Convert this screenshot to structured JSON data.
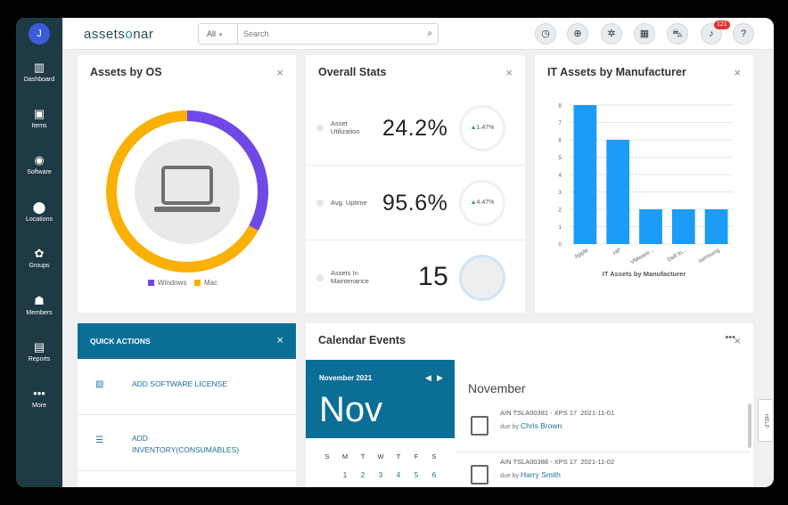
{
  "sidebar": {
    "avatar": "J",
    "items": [
      {
        "label": "Dashboard",
        "icon": "dashboard-icon",
        "glyph": "▥"
      },
      {
        "label": "Items",
        "icon": "gift-icon",
        "glyph": "▣"
      },
      {
        "label": "Software",
        "icon": "disc-icon",
        "glyph": "◉"
      },
      {
        "label": "Locations",
        "icon": "location-pin-icon",
        "glyph": "⬤"
      },
      {
        "label": "Groups",
        "icon": "groups-icon",
        "glyph": "✿"
      },
      {
        "label": "Members",
        "icon": "members-icon",
        "glyph": "☗"
      },
      {
        "label": "Reports",
        "icon": "reports-icon",
        "glyph": "▤"
      },
      {
        "label": "More",
        "icon": "more-icon",
        "glyph": "•••"
      }
    ]
  },
  "topbar": {
    "logo_left": "assets",
    "logo_o": "o",
    "logo_right": "nar",
    "search_scope": "All",
    "search_placeholder": "Search",
    "notification_count": "121",
    "help_tab": "HELP"
  },
  "assets_by_os": {
    "title": "Assets by OS",
    "close": "×",
    "legend": [
      {
        "name": "Windows",
        "color": "#7048e8"
      },
      {
        "name": "Mac",
        "color": "#fab005"
      }
    ],
    "windows_fraction": 0.33
  },
  "overall_stats": {
    "title": "Overall Stats",
    "close": "×",
    "rows": [
      {
        "label_line1": "Asset",
        "label_line2": "Utilization",
        "value": "24.2%",
        "delta": "1.47%"
      },
      {
        "label_line1": "Avg. Uptime",
        "label_line2": "",
        "value": "95.6%",
        "delta": "4.47%"
      },
      {
        "label_line1": "Assets In",
        "label_line2": "Maintenance",
        "value": "15",
        "delta": ""
      }
    ]
  },
  "it_assets": {
    "title": "IT Assets by Manufacturer",
    "close": "×",
    "chart_data": {
      "type": "bar",
      "categories": [
        "Apple",
        "HP",
        "VMware...",
        "Dell In...",
        "samsung"
      ],
      "values": [
        8,
        6,
        2,
        2,
        2
      ],
      "title": "",
      "xlabel": "IT Assets by Manufacturer",
      "ylabel": "",
      "ylim": [
        0,
        8
      ],
      "yticks": [
        "0",
        "1",
        "2",
        "3",
        "4",
        "5",
        "6",
        "7",
        "8"
      ],
      "bar_color": "#1c9cf6",
      "grid": true
    }
  },
  "quick_actions": {
    "title": "QUICK ACTIONS",
    "close": "×",
    "items": [
      {
        "line1": "ADD SOFTWARE LICENSE",
        "line2": "",
        "icon": "software-license-icon",
        "glyph": "▧"
      },
      {
        "line1": "ADD",
        "line2": "INVENTORY(CONSUMABLES)",
        "icon": "inventory-icon",
        "glyph": "☰"
      }
    ]
  },
  "calendar": {
    "title": "Calendar Events",
    "menu": "•••",
    "close": "×",
    "month_year": "November 2021",
    "prev": "◀",
    "next": "▶",
    "month_short": "Nov",
    "weekdays": [
      "S",
      "M",
      "T",
      "W",
      "T",
      "F",
      "S"
    ],
    "days": [
      "1",
      "2",
      "3",
      "4",
      "5",
      "6"
    ],
    "list_heading": "November",
    "events": [
      {
        "title": "AIN TSLA00381 - XPS 17",
        "date": "2021-11-01",
        "due_prefix": "due by",
        "person": "Chris Brown"
      },
      {
        "title": "AIN TSLA00388 - XPS 17",
        "date": "2021-11-02",
        "due_prefix": "due by",
        "person": "Harry Smith"
      }
    ]
  }
}
